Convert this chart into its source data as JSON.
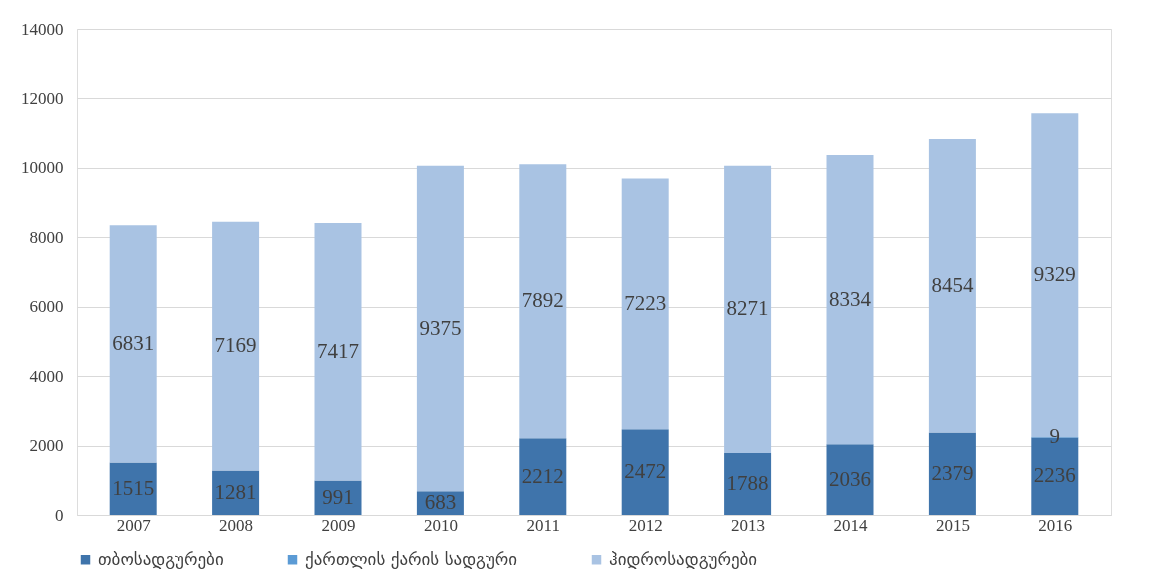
{
  "chart_data": {
    "type": "bar",
    "stacked": true,
    "categories": [
      "2007",
      "2008",
      "2009",
      "2010",
      "2011",
      "2012",
      "2013",
      "2014",
      "2015",
      "2016"
    ],
    "series": [
      {
        "name": "თბოსადგურები",
        "color": "#3f74ab",
        "values": [
          1515,
          1281,
          991,
          683,
          2212,
          2472,
          1788,
          2036,
          2379,
          2236
        ]
      },
      {
        "name": "ქართლის  ქარის  სადგური",
        "color": "#5b9bd5",
        "values": [
          null,
          null,
          null,
          null,
          null,
          null,
          null,
          null,
          null,
          9
        ]
      },
      {
        "name": "ჰიდროსადგურები",
        "color": "#a9c3e3",
        "values": [
          6831,
          7169,
          7417,
          9375,
          7892,
          7223,
          8271,
          8334,
          8454,
          9329
        ]
      }
    ],
    "ylim": [
      0,
      14000
    ],
    "yticks": [
      0,
      2000,
      4000,
      6000,
      8000,
      10000,
      12000,
      14000
    ],
    "grid": "y",
    "legend": "bottom",
    "data_labels": true
  }
}
